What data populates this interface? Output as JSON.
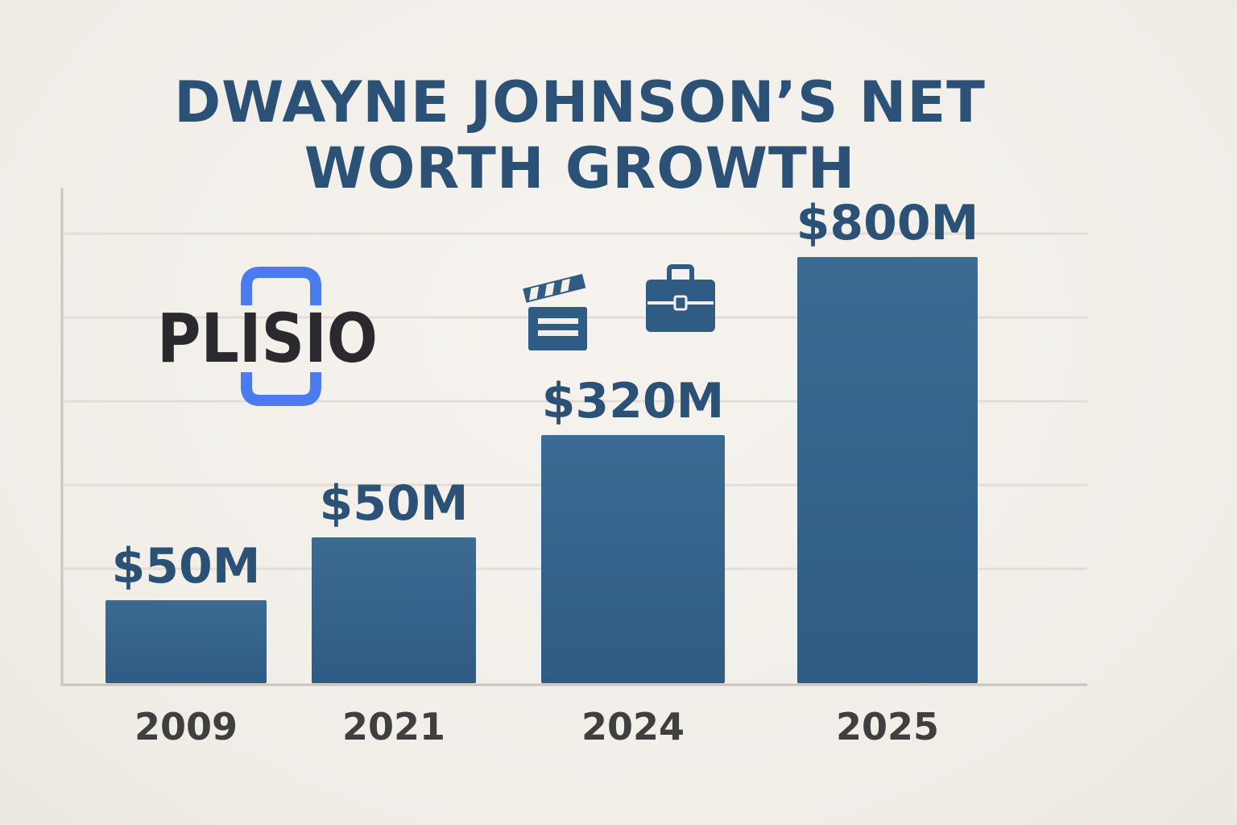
{
  "chart_data": {
    "type": "bar",
    "title": "DWAYNE JOHNSON’S NET WORTH GROWTH",
    "categories": [
      "2009",
      "2021",
      "2024",
      "2025"
    ],
    "values": [
      50,
      50,
      320,
      800
    ],
    "value_labels": [
      "$50M",
      "$50M",
      "$320M",
      "$800M"
    ],
    "ylim": [
      0,
      900
    ],
    "grid": true,
    "legend": "none"
  },
  "logo": {
    "text": "PLISIO",
    "accent_color": "#4a7cf0"
  },
  "icons": [
    "clapperboard-icon",
    "briefcase-icon"
  ],
  "colors": {
    "title": "#2c5176",
    "bar": "#36648f",
    "bar_label": "#2c5176",
    "tick_label": "#3f3f3f",
    "grid": "#e2ded6",
    "axis": "#c9c5bd",
    "background": "#f3f0ea"
  }
}
